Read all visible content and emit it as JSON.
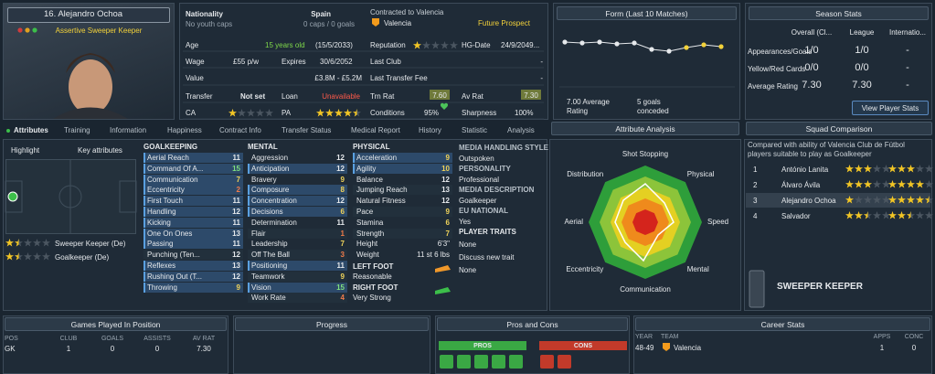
{
  "player": {
    "name": "16. Alejandro Ochoa",
    "role": "Assertive Sweeper Keeper"
  },
  "overview": {
    "nationality": "Nationality",
    "youth_caps": "No youth caps",
    "nation": "Spain",
    "caps": "0 caps / 0 goals",
    "contract": "Contracted to Valencia",
    "club": "Valencia",
    "status": "Future Prospect",
    "age_label": "Age",
    "age": "15 years old",
    "dob": "(15/5/2033)",
    "wage_label": "Wage",
    "wage": "£55 p/w",
    "expires_label": "Expires",
    "expires": "30/6/2052",
    "value_label": "Value",
    "value": "£3.8M - £5.2M",
    "transfer_label": "Transfer",
    "transfer": "Not set",
    "loan_label": "Loan",
    "loan": "Unavailable",
    "ca_label": "CA",
    "ca_stars": 1,
    "pa_label": "PA",
    "pa_stars": 4.5,
    "reputation_label": "Reputation",
    "reputation_stars": 1,
    "hg_label": "HG-Date",
    "hg": "24/9/2049...",
    "last_club_label": "Last Club",
    "last_club": "-",
    "fee_label": "Last Transfer Fee",
    "fee": "-",
    "trn_label": "Trn Rat",
    "trn": "7.60",
    "av_label": "Av Rat",
    "av": "7.30",
    "conditions_label": "Conditions",
    "conditions": "95%",
    "sharpness_label": "Sharpness",
    "sharpness": "100%"
  },
  "form": {
    "title": "Form (Last 10 Matches)",
    "rating": "7.00 Average Rating",
    "conceded": "5 goals conceded"
  },
  "season": {
    "title": "Season Stats",
    "columns": [
      "Overall (Cl...",
      "League",
      "Internatio..."
    ],
    "rows": [
      {
        "label": "Appearances/Goals",
        "values": [
          "1/0",
          "1/0",
          "-"
        ]
      },
      {
        "label": "Yellow/Red Cards",
        "values": [
          "0/0",
          "0/0",
          "-"
        ]
      },
      {
        "label": "Average Rating",
        "values": [
          "7.30",
          "7.30",
          "-"
        ]
      }
    ],
    "button": "View Player Stats"
  },
  "tabs": [
    "Attributes",
    "Training",
    "Information",
    "Happiness",
    "Contract Info",
    "Transfer Status",
    "Medical Report",
    "History",
    "Statistic",
    "Analysis"
  ],
  "left": {
    "highlight": "Highlight",
    "key": "Key attributes",
    "roles": [
      {
        "name": "Sweeper Keeper (De)",
        "stars": 1.5
      },
      {
        "name": "Goalkeeper (De)",
        "stars": 1.5
      }
    ]
  },
  "attributes": [
    {
      "title": "GOALKEEPING",
      "items": [
        {
          "name": "Aerial Reach",
          "value": 11,
          "key": true
        },
        {
          "name": "Command Of A...",
          "value": 15,
          "key": true
        },
        {
          "name": "Communication",
          "value": 7,
          "key": true
        },
        {
          "name": "Eccentricity",
          "value": 2,
          "key": true
        },
        {
          "name": "First Touch",
          "value": 11,
          "key": true
        },
        {
          "name": "Handling",
          "value": 12,
          "key": true
        },
        {
          "name": "Kicking",
          "value": 11,
          "key": true
        },
        {
          "name": "One On Ones",
          "value": 13,
          "key": true
        },
        {
          "name": "Passing",
          "value": 11,
          "key": true
        },
        {
          "name": "Punching (Ten...",
          "value": 12,
          "key": false
        },
        {
          "name": "Reflexes",
          "value": 13,
          "key": true
        },
        {
          "name": "Rushing Out (T...",
          "value": 12,
          "key": true
        },
        {
          "name": "Throwing",
          "value": 9,
          "key": true
        }
      ]
    },
    {
      "title": "MENTAL",
      "items": [
        {
          "name": "Aggression",
          "value": 12,
          "key": false
        },
        {
          "name": "Anticipation",
          "value": 12,
          "key": true
        },
        {
          "name": "Bravery",
          "value": 9,
          "key": false
        },
        {
          "name": "Composure",
          "value": 8,
          "key": true
        },
        {
          "name": "Concentration",
          "value": 12,
          "key": true
        },
        {
          "name": "Decisions",
          "value": 6,
          "key": true
        },
        {
          "name": "Determination",
          "value": 11,
          "key": false
        },
        {
          "name": "Flair",
          "value": 1,
          "key": false
        },
        {
          "name": "Leadership",
          "value": 7,
          "key": false
        },
        {
          "name": "Off The Ball",
          "value": 3,
          "key": false
        },
        {
          "name": "Positioning",
          "value": 11,
          "key": true
        },
        {
          "name": "Teamwork",
          "value": 9,
          "key": false
        },
        {
          "name": "Vision",
          "value": 15,
          "key": true
        },
        {
          "name": "Work Rate",
          "value": 4,
          "key": false
        }
      ]
    },
    {
      "title": "PHYSICAL",
      "items": [
        {
          "name": "Acceleration",
          "value": 9,
          "key": true
        },
        {
          "name": "Agility",
          "value": 10,
          "key": true
        },
        {
          "name": "Balance",
          "value": 12,
          "key": false
        },
        {
          "name": "Jumping Reach",
          "value": 13,
          "key": false
        },
        {
          "name": "Natural Fitness",
          "value": 12,
          "key": false
        },
        {
          "name": "Pace",
          "value": 9,
          "key": false
        },
        {
          "name": "Stamina",
          "value": 6,
          "key": false
        },
        {
          "name": "Strength",
          "value": 7,
          "key": false
        }
      ]
    }
  ],
  "physique": {
    "height_label": "Height",
    "height": "6'3\"",
    "weight_label": "Weight",
    "weight": "11 st 6 lbs",
    "left_foot_label": "LEFT FOOT",
    "left_foot": "Reasonable",
    "right_foot_label": "RIGHT FOOT",
    "right_foot": "Very Strong"
  },
  "media": [
    {
      "heading": "MEDIA HANDLING STYLE",
      "text": "Outspoken"
    },
    {
      "heading": "PERSONALITY",
      "text": "Professional"
    },
    {
      "heading": "MEDIA DESCRIPTION",
      "text": "Goalkeeper"
    },
    {
      "heading": "EU NATIONAL",
      "text": "Yes"
    }
  ],
  "traits": {
    "heading": "PLAYER TRAITS",
    "items": [
      "None",
      "Discuss new trait",
      "None"
    ]
  },
  "analysis": {
    "title": "Attribute Analysis",
    "labels": [
      "Shot Stopping",
      "Physical",
      "Speed",
      "Mental",
      "Communication",
      "Eccentricity",
      "Aerial",
      "Distribution"
    ]
  },
  "squad": {
    "title": "Squad Comparison",
    "note": "Compared with ability of Valencia Club de Fútbol players suitable to play as Goalkeeper",
    "rows": [
      {
        "rank": 1,
        "name": "António Lanita",
        "current": 3,
        "potential": 3
      },
      {
        "rank": 2,
        "name": "Álvaro Ávila",
        "current": 3,
        "potential": 4
      },
      {
        "rank": 3,
        "name": "Alejandro Ochoa",
        "current": 1,
        "potential": 4.5
      },
      {
        "rank": 4,
        "name": "Salvador",
        "current": 2.5,
        "potential": 2.5
      }
    ],
    "role": "SWEEPER KEEPER"
  },
  "games": {
    "title": "Games Played In Position",
    "headers": [
      "POS",
      "CLUB",
      "GOALS",
      "ASSISTS",
      "AV RAT"
    ],
    "row": [
      "GK",
      1,
      0,
      0,
      "7.30"
    ]
  },
  "progress": {
    "title": "Progress"
  },
  "pros_cons": {
    "title": "Pros and Cons",
    "pros": "PROS",
    "cons": "CONS"
  },
  "career": {
    "title": "Career Stats",
    "headers": [
      "YEAR",
      "TEAM",
      "APPS",
      "CONC"
    ],
    "row": [
      "48-49",
      "Valencia",
      1,
      0
    ]
  }
}
